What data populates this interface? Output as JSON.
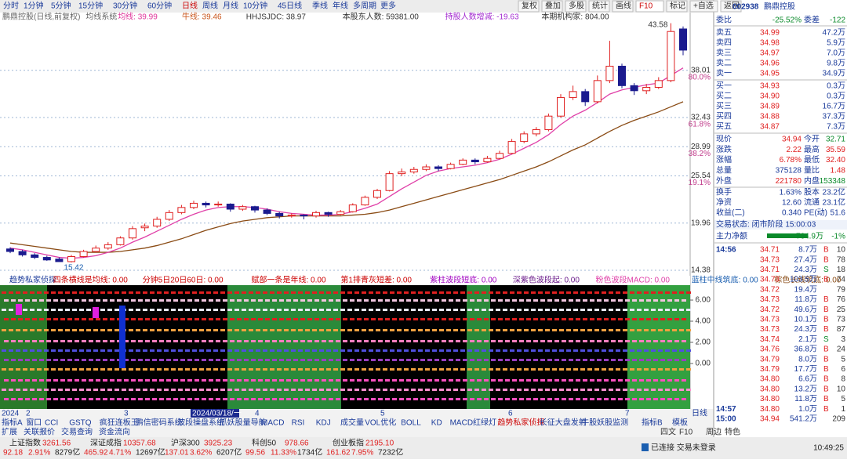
{
  "toolbar": {
    "periods": [
      "分时",
      "1分钟",
      "5分钟",
      "15分钟",
      "30分钟",
      "60分钟",
      "日线",
      "周线",
      "月线",
      "10分钟",
      "45日线",
      "季线",
      "年线",
      "多周期",
      "更多"
    ],
    "buttons": [
      "复权",
      "叠加",
      "多股",
      "统计",
      "画线",
      "F10",
      "标记",
      "+自选",
      "返回"
    ]
  },
  "info_bar": [
    "鹏鼎控股(日线,前复权)",
    "均线系统",
    "均线: 39.99",
    "牛线: 39.46",
    "HHJSJDC: 38.97",
    "本股东人数: 59381.00",
    "持股人数增减: -19.63",
    "本期机构家: 804.00"
  ],
  "price_chart": {
    "type": "candlestick",
    "ylim": [
      13.73,
      43.73
    ],
    "yticks": [
      38.01,
      32.43,
      28.99,
      25.54,
      19.96,
      14.38
    ],
    "fib_labels": [
      "80.0%",
      "61.8%",
      "38.2%",
      "19.1%"
    ],
    "candles": [
      [
        16.9,
        17.1,
        16.4,
        16.6
      ],
      [
        16.6,
        16.8,
        16.0,
        16.2
      ],
      [
        16.2,
        16.4,
        15.7,
        15.9
      ],
      [
        15.9,
        16.1,
        15.5,
        15.6
      ],
      [
        15.7,
        15.9,
        15.42,
        15.4
      ],
      [
        15.4,
        16.2,
        15.3,
        16.0
      ],
      [
        16.0,
        16.8,
        15.9,
        16.6
      ],
      [
        16.6,
        17.3,
        16.5,
        17.0
      ],
      [
        17.0,
        17.7,
        16.8,
        17.4
      ],
      [
        17.4,
        18.4,
        17.3,
        18.2
      ],
      [
        18.2,
        19.6,
        18.0,
        19.3
      ],
      [
        19.4,
        19.9,
        19.0,
        19.6
      ],
      [
        19.6,
        20.7,
        19.4,
        20.4
      ],
      [
        20.4,
        21.5,
        20.2,
        21.2
      ],
      [
        21.2,
        22.1,
        21.0,
        21.8
      ],
      [
        21.8,
        22.6,
        21.6,
        22.3
      ],
      [
        22.3,
        22.5,
        21.8,
        22.1
      ],
      [
        22.1,
        22.5,
        21.9,
        22.2
      ],
      [
        22.2,
        22.3,
        21.3,
        21.6
      ],
      [
        21.6,
        22.1,
        21.4,
        21.9
      ],
      [
        21.9,
        22.0,
        21.2,
        21.5
      ],
      [
        21.5,
        21.7,
        20.9,
        21.1
      ],
      [
        21.1,
        21.3,
        20.5,
        20.8
      ],
      [
        20.8,
        21.1,
        20.6,
        20.9
      ],
      [
        20.9,
        21.0,
        20.4,
        20.8
      ],
      [
        20.8,
        21.4,
        20.6,
        21.2
      ],
      [
        21.2,
        21.3,
        20.7,
        21.0
      ],
      [
        21.0,
        21.5,
        20.9,
        21.3
      ],
      [
        21.3,
        22.3,
        21.2,
        22.1
      ],
      [
        22.1,
        23.2,
        22.0,
        23.0
      ],
      [
        23.0,
        24.0,
        22.8,
        23.8
      ],
      [
        23.8,
        26.1,
        23.7,
        25.8
      ],
      [
        25.8,
        26.4,
        25.5,
        26.0
      ],
      [
        26.0,
        26.6,
        25.8,
        26.3
      ],
      [
        26.3,
        26.9,
        26.1,
        26.6
      ],
      [
        26.6,
        26.8,
        26.1,
        26.4
      ],
      [
        26.4,
        27.1,
        26.3,
        26.9
      ],
      [
        26.9,
        27.6,
        26.8,
        27.4
      ],
      [
        27.4,
        27.6,
        26.9,
        27.2
      ],
      [
        27.2,
        27.9,
        27.1,
        27.6
      ],
      [
        27.6,
        28.5,
        27.5,
        28.2
      ],
      [
        28.2,
        29.9,
        28.1,
        29.6
      ],
      [
        29.6,
        30.8,
        29.4,
        30.5
      ],
      [
        30.5,
        31.3,
        30.2,
        31.0
      ],
      [
        31.0,
        32.9,
        30.8,
        32.6
      ],
      [
        32.6,
        35.2,
        32.4,
        34.8
      ],
      [
        34.8,
        36.2,
        34.5,
        35.5
      ],
      [
        35.5,
        35.8,
        33.8,
        34.3
      ],
      [
        34.3,
        37.4,
        34.1,
        36.8
      ],
      [
        36.8,
        41.5,
        36.5,
        38.5
      ],
      [
        38.5,
        38.8,
        35.9,
        36.2
      ],
      [
        36.2,
        36.5,
        35.1,
        35.6
      ],
      [
        35.6,
        36.4,
        35.2,
        36.0
      ],
      [
        36.0,
        37.2,
        35.8,
        36.8
      ],
      [
        36.8,
        43.58,
        36.6,
        42.6
      ],
      [
        42.9,
        43.2,
        39.8,
        40.4
      ]
    ],
    "ma_short": [
      17.0,
      16.8,
      16.5,
      16.2,
      15.9,
      15.8,
      15.9,
      16.1,
      16.5,
      17.0,
      17.7,
      18.3,
      19.0,
      19.7,
      20.4,
      21.0,
      21.5,
      21.8,
      21.9,
      21.9,
      21.8,
      21.6,
      21.3,
      21.1,
      21.0,
      20.9,
      20.9,
      21.0,
      21.3,
      21.7,
      22.2,
      23.1,
      24.0,
      24.8,
      25.6,
      26.1,
      26.4,
      26.6,
      26.8,
      27.1,
      27.5,
      28.1,
      28.8,
      29.5,
      30.4,
      31.6,
      32.6,
      33.3,
      34.2,
      35.2,
      35.7,
      36.0,
      36.3,
      36.5,
      37.4,
      38.3
    ],
    "ma_long": [
      17.6,
      17.4,
      17.2,
      17.0,
      16.8,
      16.6,
      16.5,
      16.5,
      16.5,
      16.6,
      16.8,
      17.0,
      17.3,
      17.7,
      18.1,
      18.6,
      19.1,
      19.5,
      19.9,
      20.2,
      20.4,
      20.6,
      20.7,
      20.8,
      20.8,
      20.8,
      20.8,
      20.8,
      20.9,
      21.0,
      21.2,
      21.5,
      21.9,
      22.3,
      22.7,
      23.1,
      23.5,
      23.9,
      24.3,
      24.7,
      25.1,
      25.6,
      26.1,
      26.6,
      27.2,
      27.9,
      28.6,
      29.2,
      30.0,
      30.8,
      31.5,
      32.1,
      32.6,
      33.1,
      33.7,
      34.3
    ]
  },
  "indicator": {
    "items": [
      "趋势私家侦探",
      "四条横线是均线: 0.00",
      "分钟5日20日60日: 0.00",
      "赋部一条是年线: 0.00",
      "第1排青灰短差: 0.00",
      "紫柱波段短底: 0.00",
      "深紫色波段起: 0.00",
      "粉色波段MACD: 0.00",
      "蓝柱中线筑底: 0.00",
      "棕色长线筑底: 0.00",
      "红色牛转"
    ],
    "ylim": [
      -4.3,
      7.41
    ],
    "yticks": [
      {
        "value": 6,
        "label": "6.00"
      },
      {
        "value": 4,
        "label": "4.00"
      },
      {
        "value": 2,
        "label": "2.00"
      },
      {
        "value": 0,
        "label": "0.00"
      }
    ]
  },
  "date_axis": [
    "2024",
    "2",
    "3",
    "2024/03/18/一",
    "4",
    "5",
    "6",
    "7",
    "日线"
  ],
  "tabs": [
    "指标A",
    "窗口",
    "CCI",
    "GSTQ",
    "疯狂连板王",
    "鹏信密码系统",
    "波段操盘系统",
    "抓妖股量导航",
    "MACD",
    "RSI",
    "KDJ",
    "成交量",
    "VOL优化",
    "BOLL",
    "KD",
    "MACD红绿灯",
    "趋势私家侦探",
    "长征大盘发射",
    "牛股妖股监测"
  ],
  "tabs_right": [
    "指标B",
    "模板"
  ],
  "bottom_tabs": [
    "扩展",
    "关联报价",
    "交易查询",
    "资金流向"
  ],
  "bottom_right": [
    "四文",
    "F10",
    "周边",
    "特色"
  ],
  "quote": {
    "code": "002938",
    "name": "鹏鼎控股",
    "wei": {
      "k1": "委比",
      "v1": "-25.52%",
      "k2": "委差",
      "v2": "-122"
    },
    "asks": [
      {
        "label": "卖五",
        "price": "34.99",
        "vol": "47.2万"
      },
      {
        "label": "卖四",
        "price": "34.98",
        "vol": "5.9万"
      },
      {
        "label": "卖三",
        "price": "34.97",
        "vol": "7.0万"
      },
      {
        "label": "卖二",
        "price": "34.96",
        "vol": "9.8万"
      },
      {
        "label": "卖一",
        "price": "34.95",
        "vol": "34.9万"
      }
    ],
    "bids": [
      {
        "label": "买一",
        "price": "34.93",
        "vol": "0.3万"
      },
      {
        "label": "买二",
        "price": "34.90",
        "vol": "0.3万"
      },
      {
        "label": "买三",
        "price": "34.89",
        "vol": "16.7万"
      },
      {
        "label": "买四",
        "price": "34.88",
        "vol": "37.3万"
      },
      {
        "label": "买五",
        "price": "34.87",
        "vol": "7.3万"
      }
    ],
    "stats": [
      {
        "k1": "现价",
        "v1": "34.94",
        "k2": "今开",
        "v2": "32.71"
      },
      {
        "k1": "涨跌",
        "v1": "2.22",
        "k2": "最高",
        "v2": "35.59"
      },
      {
        "k1": "涨幅",
        "v1": "6.78%",
        "k2": "最低",
        "v2": "32.40"
      },
      {
        "k1": "总量",
        "v1": "375128",
        "k2": "量比",
        "v2": "1.48"
      },
      {
        "k1": "外盘",
        "v1": "221780",
        "k2": "内盘",
        "v2": "153348"
      },
      {
        "k1": "换手",
        "v1": "1.63%",
        "k2": "股本",
        "v2": "23.2亿"
      },
      {
        "k1": "净资",
        "v1": "12.60",
        "k2": "流通",
        "v2": "23.1亿"
      },
      {
        "k1": "收益(二)",
        "v1": "0.340",
        "k2": "PE(动)",
        "v2": "51.6"
      }
    ],
    "status": "交易状态: 闭市阶段 15:00:03",
    "net": {
      "label": "主力净额",
      "value": "-764.9万",
      "pct": "-1%"
    },
    "ticks": [
      {
        "time": "14:56",
        "price": "34.71",
        "vol": "8.7万",
        "side": "B",
        "n": "10"
      },
      {
        "price": "34.73",
        "vol": "27.4万",
        "side": "B",
        "n": "78"
      },
      {
        "price": "34.71",
        "vol": "24.3万",
        "side": "S",
        "n": "18"
      },
      {
        "price": "34.73",
        "vol": "103.5万",
        "side": "B",
        "n": "74"
      },
      {
        "price": "34.72",
        "vol": "19.4万",
        "n": "79"
      },
      {
        "price": "34.73",
        "vol": "11.8万",
        "side": "B",
        "n": "76"
      },
      {
        "price": "34.72",
        "vol": "49.6万",
        "side": "B",
        "n": "25"
      },
      {
        "price": "34.73",
        "vol": "10.1万",
        "side": "B",
        "n": "73"
      },
      {
        "price": "34.73",
        "vol": "24.3万",
        "side": "B",
        "n": "87"
      },
      {
        "price": "34.74",
        "vol": "2.1万",
        "side": "S",
        "n": "3"
      },
      {
        "price": "34.76",
        "vol": "36.8万",
        "side": "B",
        "n": "24"
      },
      {
        "price": "34.79",
        "vol": "8.0万",
        "side": "B",
        "n": "5"
      },
      {
        "price": "34.79",
        "vol": "17.7万",
        "side": "B",
        "n": "6"
      },
      {
        "price": "34.80",
        "vol": "6.6万",
        "side": "B",
        "n": "8"
      },
      {
        "price": "34.80",
        "vol": "13.2万",
        "side": "B",
        "n": "10"
      },
      {
        "price": "34.80",
        "vol": "11.8万",
        "side": "B",
        "n": "5"
      },
      {
        "time": "14:57",
        "price": "34.80",
        "vol": "1.0万",
        "side": "B",
        "n": "1"
      },
      {
        "time": "15:00",
        "price": "34.94",
        "vol": "541.2万",
        "n": "209"
      }
    ]
  },
  "status_bar": {
    "indices": [
      {
        "name": "上证指数",
        "value": "3261.56",
        "change": "92.18",
        "pct": "2.91%",
        "amount": "8279亿"
      },
      {
        "name": "深证成指",
        "value": "10357.68",
        "change": "465.92",
        "pct": "4.71%",
        "amount": "12697亿"
      },
      {
        "name": "沪深300",
        "value": "3925.23",
        "change": "137.01",
        "pct": "3.62%",
        "amount": "6207亿"
      },
      {
        "name": "科创50",
        "value": "978.66",
        "change": "99.56",
        "pct": "11.33%",
        "amount": "1734亿"
      },
      {
        "name": "创业板指",
        "value": "2195.10",
        "change": "161.62",
        "pct": "7.95%",
        "amount": "7232亿"
      }
    ],
    "connection": "已连接 交易未登录",
    "clock": "10:49:25"
  }
}
